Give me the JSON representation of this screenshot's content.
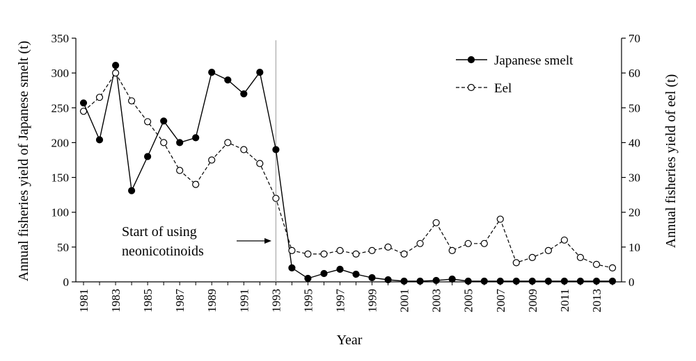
{
  "chart_data": {
    "type": "line",
    "xlabel": "Year",
    "ylabel_left": "Annual fisheries yield of Japanese smelt (t)",
    "ylabel_right": "Annual fisheries yield of eel (t)",
    "ylim_left": [
      0,
      350
    ],
    "ylim_right": [
      0,
      70
    ],
    "yticks_left": [
      0,
      50,
      100,
      150,
      200,
      250,
      300,
      350
    ],
    "yticks_right": [
      0,
      10,
      20,
      30,
      40,
      50,
      60,
      70
    ],
    "x": [
      1981,
      1982,
      1983,
      1984,
      1985,
      1986,
      1987,
      1988,
      1989,
      1990,
      1991,
      1992,
      1993,
      1994,
      1995,
      1996,
      1997,
      1998,
      1999,
      2000,
      2001,
      2002,
      2003,
      2004,
      2005,
      2006,
      2007,
      2008,
      2009,
      2010,
      2011,
      2012,
      2013,
      2014
    ],
    "xtick_labels": [
      "1981",
      "1983",
      "1985",
      "1987",
      "1989",
      "1991",
      "1993",
      "1995",
      "1997",
      "1999",
      "2001",
      "2003",
      "2005",
      "2007",
      "2009",
      "2011",
      "2013"
    ],
    "legend_position": "top-right",
    "series": [
      {
        "name": "Japanese smelt",
        "axis": "left",
        "style": "solid line, filled circle markers",
        "color": "#000000",
        "values": [
          257,
          204,
          311,
          131,
          180,
          231,
          200,
          207,
          301,
          290,
          270,
          301,
          190,
          20,
          5,
          12,
          18,
          11,
          6,
          3,
          1,
          1,
          2,
          4,
          1,
          1,
          1,
          1,
          1,
          1,
          1,
          1,
          1,
          1
        ]
      },
      {
        "name": "Eel",
        "axis": "right",
        "style": "dashed line, open circle markers",
        "color": "#000000",
        "values": [
          49,
          53,
          60,
          52,
          46,
          40,
          32,
          28,
          35,
          40,
          38,
          34,
          24,
          9,
          8,
          8,
          9,
          8,
          9,
          10,
          8,
          11,
          17,
          9,
          11,
          11,
          18,
          5.5,
          7,
          9,
          12,
          7,
          5,
          4
        ]
      }
    ],
    "annotation": {
      "lines": [
        "Start of using",
        "neonicotinoids"
      ],
      "at_year": 1993
    }
  }
}
